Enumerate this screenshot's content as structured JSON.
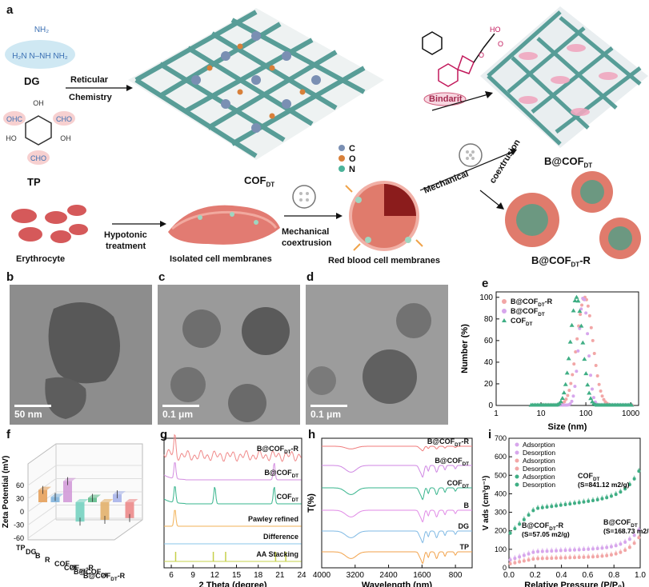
{
  "panel_labels": {
    "a": "a",
    "b": "b",
    "c": "c",
    "d": "d",
    "e": "e",
    "f": "f",
    "g": "g",
    "h": "h",
    "i": "i"
  },
  "schematic": {
    "dg": "DG",
    "tp": "TP",
    "reticular": "Reticular",
    "chemistry": "Chemistry",
    "cof": "COF",
    "bindarit": "Bindarit",
    "b_at_cof": "B@COF",
    "mechanical": "Mechanical",
    "coextrusion": "coextrusion",
    "erythrocyte": "Erythrocyte",
    "hypotonic": "Hypotonic",
    "treatment": "treatment",
    "isolated": "Isolated cell membranes",
    "mech_coex_1": "Mechanical",
    "mech_coex_2": "coextrusion",
    "rbc_membranes": "Red blood cell membranes",
    "b_cof_r": "B@COF",
    "sub_dt": "DT",
    "sub_r": "-R",
    "elem_c": "C",
    "elem_o": "O",
    "elem_n": "N",
    "colors": {
      "c": "#7a8fb3",
      "o": "#d8803a",
      "n": "#4bb39a"
    }
  },
  "tem": {
    "b_scale": "50 nm",
    "c_scale": "0.1 μm",
    "d_scale": "0.1 μm"
  },
  "chart_data": [
    {
      "panel": "e",
      "type": "scatter",
      "xlabel": "Size (nm)",
      "ylabel": "Number (%)",
      "x_scale": "log",
      "xlim": [
        1,
        1500
      ],
      "ylim": [
        0,
        105
      ],
      "xticks": [
        "1",
        "10",
        "100",
        "1000"
      ],
      "yticks": [
        "0",
        "20",
        "40",
        "60",
        "80",
        "100"
      ],
      "legend_position": "top-left",
      "series": [
        {
          "name": "B@COF_DT-R",
          "color": "#f2a6a6",
          "peak": 95,
          "width": 0.26,
          "min": 10,
          "max": 1100
        },
        {
          "name": "B@COF_DT",
          "color": "#d7a6ec",
          "peak": 88,
          "width": 0.15,
          "min": 20,
          "max": 1100
        },
        {
          "name": "COF_DT",
          "color": "#3fae84",
          "peak": 62,
          "width": 0.2,
          "min": 6,
          "max": 1100
        }
      ]
    },
    {
      "panel": "f",
      "type": "bar",
      "ylabel": "Zeta Potential (mV)",
      "yticks": [
        "60",
        "30",
        "0",
        "-30",
        "-60"
      ],
      "categories": [
        "TP",
        "DG",
        "B",
        "R",
        "COF_DT",
        "COF_DT-R",
        "B@COF_DT",
        "B@COF_DT-R"
      ],
      "values": [
        28,
        12,
        48,
        -44,
        10,
        -40,
        18,
        -36
      ],
      "colors": [
        "#e5a05a",
        "#7fb3dc",
        "#d29ad8",
        "#76d2c0",
        "#5fba8a",
        "#e2b06a",
        "#a9b4ea",
        "#ec8a8a"
      ]
    },
    {
      "panel": "g",
      "type": "line",
      "xlabel": "2 Theta (degree)",
      "xlim": [
        5,
        24
      ],
      "xticks": [
        "6",
        "9",
        "12",
        "15",
        "18",
        "21",
        "24"
      ],
      "series": [
        {
          "name": "B@COF_DT-R",
          "color": "#f08a8a",
          "peaks": [
            6.5
          ]
        },
        {
          "name": "B@COF_DT",
          "color": "#d38de0",
          "peaks": [
            6.5,
            20.2
          ]
        },
        {
          "name": "COF_DT",
          "color": "#36b48c",
          "peaks": [
            6.5,
            12,
            20.2
          ]
        },
        {
          "name": "Pawley refined",
          "color": "#f2b257",
          "peaks": [
            6.5
          ]
        },
        {
          "name": "Difference",
          "color": "#88c6ea",
          "peaks": []
        },
        {
          "name": "AA Stacking",
          "color": "#c6d04a",
          "peaks": [
            6.6,
            11.8,
            13.5,
            20.4,
            21.8
          ]
        }
      ]
    },
    {
      "panel": "h",
      "type": "line",
      "xlabel": "Wavelength (nm)",
      "ylabel": "T(%)",
      "xticks": [
        "4000",
        "3200",
        "2400",
        "1600",
        "800"
      ],
      "series": [
        {
          "name": "B@COF_DT-R",
          "color": "#f07b7b"
        },
        {
          "name": "B@COF_DT",
          "color": "#cf86e3"
        },
        {
          "name": "COF_DT",
          "color": "#36b48c"
        },
        {
          "name": "B",
          "color": "#e08ae6"
        },
        {
          "name": "DG",
          "color": "#7fb9e4"
        },
        {
          "name": "TP",
          "color": "#f2a24a"
        }
      ]
    },
    {
      "panel": "i",
      "type": "scatter",
      "xlabel": "Relative Pressure (P/P₀)",
      "ylabel": "V ads (cm³g⁻¹)",
      "xlim": [
        0,
        1
      ],
      "ylim": [
        0,
        700
      ],
      "xticks": [
        "0.0",
        "0.2",
        "0.4",
        "0.6",
        "0.8",
        "1.0"
      ],
      "yticks": [
        "0",
        "100",
        "200",
        "300",
        "400",
        "500",
        "600",
        "700"
      ],
      "legend": [
        "Adsorption",
        "Desorption",
        "Adsorption",
        "Desorption",
        "Adsorption",
        "Desorption"
      ],
      "annotations": [
        {
          "text": "COF_DT",
          "sub": "(S=841.12 m2/g)"
        },
        {
          "text": "B@COF_DT",
          "sub": "(S=168.73 m2/g)"
        },
        {
          "text": "B@COF_DT-R",
          "sub": "(S=57.05 m2/g)"
        }
      ],
      "series": [
        {
          "name": "COF_DT",
          "color": "#3fae84",
          "v0": 180,
          "vmid": 300,
          "vmax": 620
        },
        {
          "name": "B@COF_DT",
          "color": "#d7a6ec",
          "v0": 40,
          "vmid": 80,
          "vmax": 230
        },
        {
          "name": "B@COF_DT-R",
          "color": "#f2a6a6",
          "v0": 20,
          "vmid": 45,
          "vmax": 180
        }
      ]
    }
  ]
}
